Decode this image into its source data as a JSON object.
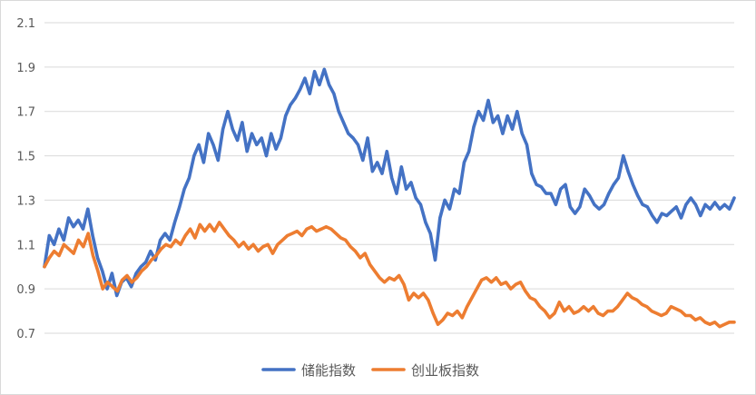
{
  "chart_data": {
    "type": "line",
    "title": "",
    "xlabel": "",
    "ylabel": "",
    "ylim": [
      0.7,
      2.1
    ],
    "yticks": [
      "0.7",
      "0.9",
      "1.1",
      "1.3",
      "1.5",
      "1.7",
      "1.9",
      "2.1"
    ],
    "grid": true,
    "legend_position": "bottom",
    "series": [
      {
        "name": "储能指数",
        "color": "#4472C4",
        "values": [
          1.0,
          1.14,
          1.1,
          1.17,
          1.12,
          1.22,
          1.18,
          1.21,
          1.17,
          1.26,
          1.14,
          1.04,
          0.98,
          0.9,
          0.97,
          0.87,
          0.93,
          0.95,
          0.91,
          0.97,
          1.0,
          1.02,
          1.07,
          1.03,
          1.12,
          1.15,
          1.12,
          1.2,
          1.27,
          1.35,
          1.4,
          1.5,
          1.55,
          1.47,
          1.6,
          1.55,
          1.48,
          1.62,
          1.7,
          1.62,
          1.57,
          1.65,
          1.52,
          1.6,
          1.55,
          1.58,
          1.5,
          1.6,
          1.53,
          1.58,
          1.68,
          1.73,
          1.76,
          1.8,
          1.85,
          1.78,
          1.88,
          1.82,
          1.89,
          1.82,
          1.78,
          1.7,
          1.65,
          1.6,
          1.58,
          1.55,
          1.48,
          1.58,
          1.43,
          1.47,
          1.42,
          1.52,
          1.4,
          1.33,
          1.45,
          1.35,
          1.38,
          1.31,
          1.28,
          1.2,
          1.15,
          1.03,
          1.22,
          1.3,
          1.26,
          1.35,
          1.33,
          1.47,
          1.52,
          1.63,
          1.7,
          1.66,
          1.75,
          1.65,
          1.68,
          1.6,
          1.68,
          1.62,
          1.7,
          1.6,
          1.55,
          1.42,
          1.37,
          1.36,
          1.33,
          1.33,
          1.28,
          1.35,
          1.37,
          1.27,
          1.24,
          1.27,
          1.35,
          1.32,
          1.28,
          1.26,
          1.28,
          1.33,
          1.37,
          1.4,
          1.5,
          1.43,
          1.37,
          1.32,
          1.28,
          1.27,
          1.23,
          1.2,
          1.24,
          1.23,
          1.25,
          1.27,
          1.22,
          1.28,
          1.31,
          1.28,
          1.23,
          1.28,
          1.26,
          1.29,
          1.26,
          1.28,
          1.26,
          1.31
        ]
      },
      {
        "name": "创业板指数",
        "color": "#ED7D31",
        "values": [
          1.0,
          1.04,
          1.07,
          1.05,
          1.1,
          1.08,
          1.06,
          1.12,
          1.09,
          1.15,
          1.05,
          0.98,
          0.9,
          0.93,
          0.91,
          0.89,
          0.94,
          0.96,
          0.93,
          0.95,
          0.98,
          1.0,
          1.03,
          1.05,
          1.08,
          1.1,
          1.09,
          1.12,
          1.1,
          1.14,
          1.17,
          1.13,
          1.19,
          1.16,
          1.19,
          1.16,
          1.2,
          1.17,
          1.14,
          1.12,
          1.09,
          1.11,
          1.08,
          1.1,
          1.07,
          1.09,
          1.1,
          1.06,
          1.1,
          1.12,
          1.14,
          1.15,
          1.16,
          1.14,
          1.17,
          1.18,
          1.16,
          1.17,
          1.18,
          1.17,
          1.15,
          1.13,
          1.12,
          1.09,
          1.07,
          1.04,
          1.06,
          1.01,
          0.98,
          0.95,
          0.93,
          0.95,
          0.94,
          0.96,
          0.92,
          0.85,
          0.88,
          0.86,
          0.88,
          0.85,
          0.79,
          0.74,
          0.76,
          0.79,
          0.78,
          0.8,
          0.77,
          0.82,
          0.86,
          0.9,
          0.94,
          0.95,
          0.93,
          0.95,
          0.92,
          0.93,
          0.9,
          0.92,
          0.93,
          0.89,
          0.86,
          0.85,
          0.82,
          0.8,
          0.77,
          0.79,
          0.84,
          0.8,
          0.82,
          0.79,
          0.8,
          0.82,
          0.8,
          0.82,
          0.79,
          0.78,
          0.8,
          0.8,
          0.82,
          0.85,
          0.88,
          0.86,
          0.85,
          0.83,
          0.82,
          0.8,
          0.79,
          0.78,
          0.79,
          0.82,
          0.81,
          0.8,
          0.78,
          0.78,
          0.76,
          0.77,
          0.75,
          0.74,
          0.75,
          0.73,
          0.74,
          0.75,
          0.75
        ]
      }
    ]
  }
}
